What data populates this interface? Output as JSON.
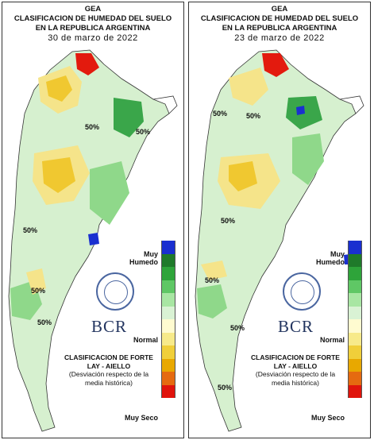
{
  "panels": [
    {
      "id": "left",
      "org": "GEA",
      "title_line1": "CLASIFICACION DE HUMEDAD DEL SUELO",
      "title_line2": "EN LA REPUBLICA ARGENTINA",
      "date": "30 de marzo de 2022",
      "legend_top": "Muy Humedo",
      "legend_mid": "Normal",
      "legend_bottom": "Muy Seco",
      "logo": "BCR",
      "classification_title": "CLASIFICACION DE FORTE LAY - AIELLO",
      "classification_note": "(Desviación respecto de la media histórica)",
      "isolines": [
        "50%",
        "50%",
        "50%",
        "50%",
        "50%"
      ]
    },
    {
      "id": "right",
      "org": "GEA",
      "title_line1": "CLASIFICACION DE HUMEDAD DEL SUELO",
      "title_line2": "EN LA REPUBLICA ARGENTINA",
      "date": "23 de marzo de 2022",
      "legend_top": "Muy Humedo",
      "legend_mid": "Normal",
      "legend_bottom": "Muy Seco",
      "logo": "BCR",
      "classification_title": "CLASIFICACION DE FORTE LAY - AIELLO",
      "classification_note": "(Desviación respecto de la media histórica)",
      "isolines": [
        "50%",
        "50%",
        "50%",
        "50%",
        "50%",
        "50%"
      ]
    }
  ],
  "legend_colors": [
    "#1a2fd0",
    "#1f7a2a",
    "#2ea43a",
    "#5fc765",
    "#a8e6a3",
    "#d9f2d4",
    "#fffbd0",
    "#f7ea8a",
    "#f0cf3a",
    "#e8a800",
    "#e56a10",
    "#e0140c"
  ],
  "map_colors": {
    "wet": "#3aa64a",
    "moist": "#8fd88a",
    "normal": "#d6f0cf",
    "dry": "#f5e48a",
    "drier": "#f0c830",
    "verydry": "#e31a0e",
    "sat": "#1a30d0"
  }
}
